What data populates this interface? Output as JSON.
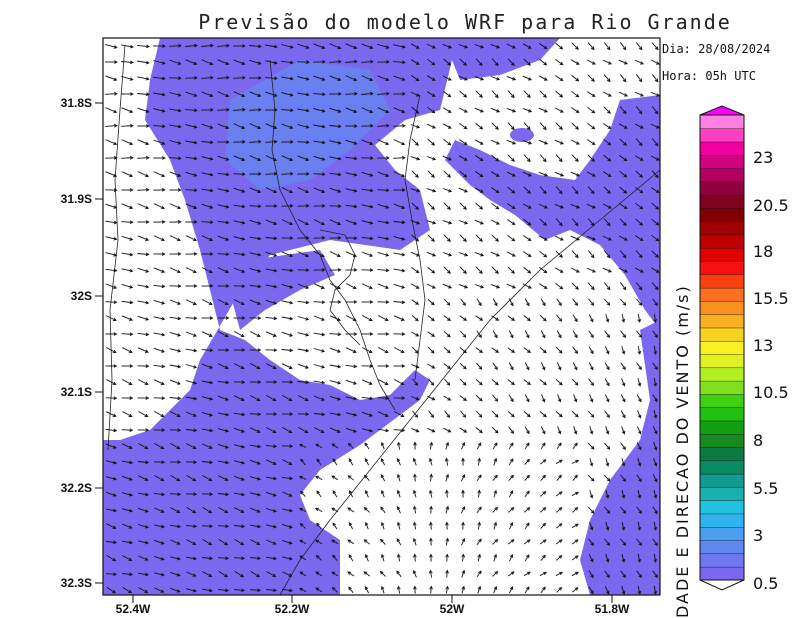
{
  "title": "Previsão do modelo WRF para Rio Grande",
  "date_line": "Dia: 28/08/2024",
  "time_line": "Hora: 05h UTC",
  "lat_labels": [
    "31.8S",
    "31.9S",
    "32S",
    "32.1S",
    "32.2S",
    "32.3S"
  ],
  "lon_labels": [
    "52.4W",
    "52.2W",
    "52W",
    "51.8W"
  ],
  "colorbar": {
    "title": "DADE E DIRECAO DO VENTO (m/s)",
    "tick_labels": [
      "23",
      "20.5",
      "18",
      "15.5",
      "13",
      "10.5",
      "8",
      "5.5",
      "3",
      "0.5"
    ]
  },
  "colors": {
    "shade_light": "#7b68ee",
    "shade_strong": "#6a7ff0"
  }
}
